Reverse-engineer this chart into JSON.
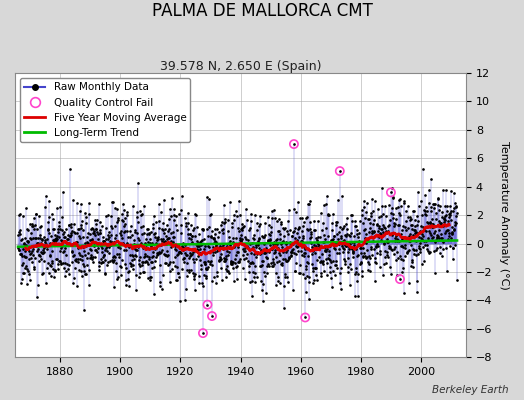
{
  "title": "PALMA DE MALLORCA CMT",
  "subtitle": "39.578 N, 2.650 E (Spain)",
  "ylabel": "Temperature Anomaly (°C)",
  "watermark": "Berkeley Earth",
  "xlim": [
    1865,
    2015
  ],
  "ylim": [
    -8,
    12
  ],
  "yticks": [
    -8,
    -6,
    -4,
    -2,
    0,
    2,
    4,
    6,
    8,
    10,
    12
  ],
  "xticks": [
    1880,
    1900,
    1920,
    1940,
    1960,
    1980,
    2000
  ],
  "year_start": 1866,
  "year_end": 2012,
  "seed": 42,
  "bg_color": "#d8d8d8",
  "plot_bg": "#ffffff",
  "raw_line_color": "#4444cc",
  "raw_dot_color": "#000000",
  "ma_color": "#dd0000",
  "trend_color": "#00bb00",
  "qc_color": "#ff44cc",
  "title_fontsize": 12,
  "subtitle_fontsize": 9,
  "tick_fontsize": 8,
  "ylabel_fontsize": 8
}
